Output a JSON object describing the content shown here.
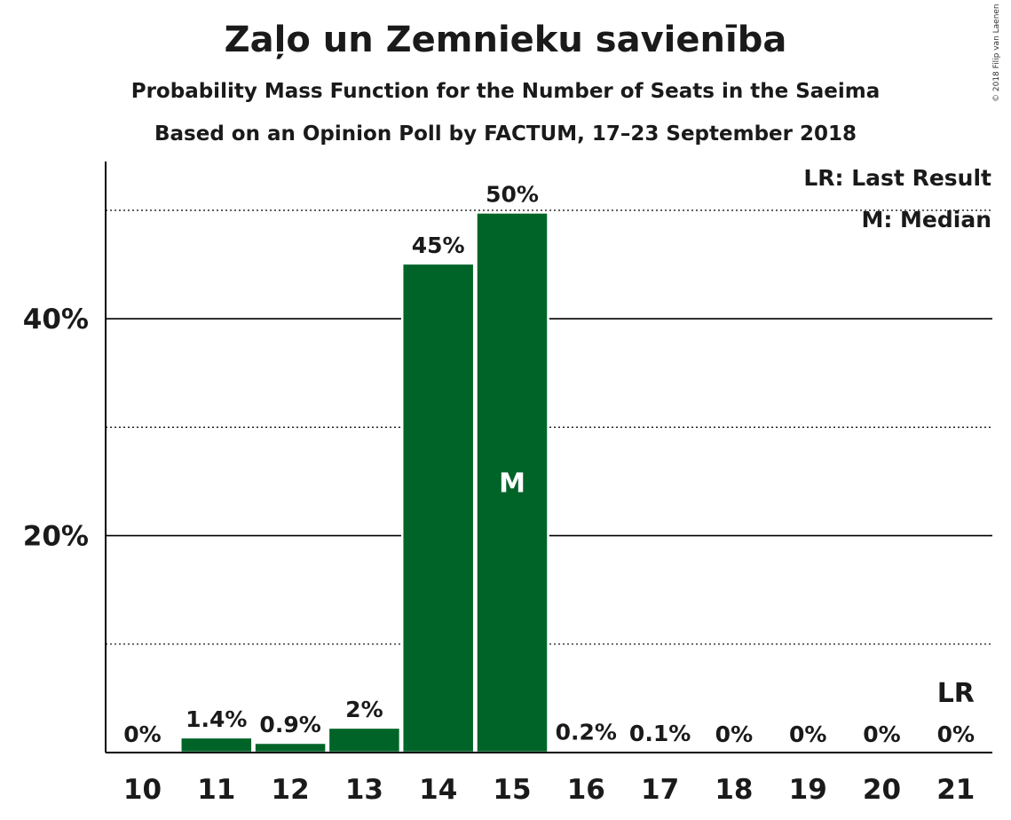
{
  "chart_data": {
    "type": "bar",
    "title": "Zaļo un Zemnieku savienība",
    "subtitle": "Probability Mass Function for the Number of Seats in the Saeima",
    "subtitle2": "Based on an Opinion Poll by FACTUM, 17–23 September 2018",
    "copyright": "© 2018 Filip van Laenen",
    "categories": [
      "10",
      "11",
      "12",
      "13",
      "14",
      "15",
      "16",
      "17",
      "18",
      "19",
      "20",
      "21"
    ],
    "values": [
      0,
      1.4,
      0.9,
      2.3,
      45.1,
      49.8,
      0.2,
      0.1,
      0,
      0,
      0,
      0
    ],
    "data_labels": [
      "0%",
      "1.4%",
      "0.9%",
      "2%",
      "45%",
      "50%",
      "0.2%",
      "0.1%",
      "0%",
      "0%",
      "0%",
      "0%"
    ],
    "y_ticks": [
      {
        "value": 20,
        "label": "20%"
      },
      {
        "value": 40,
        "label": "40%"
      }
    ],
    "y_minor_gridlines": [
      10,
      30,
      50
    ],
    "ylim": [
      0,
      54.5
    ],
    "median_index": 5,
    "median_marker": "M",
    "last_result_index": 11,
    "last_result_marker": "LR",
    "legend": [
      "LR: Last Result",
      "M: Median"
    ],
    "legend_position": "top-right",
    "bar_color": "#006428",
    "gridlines": true
  }
}
